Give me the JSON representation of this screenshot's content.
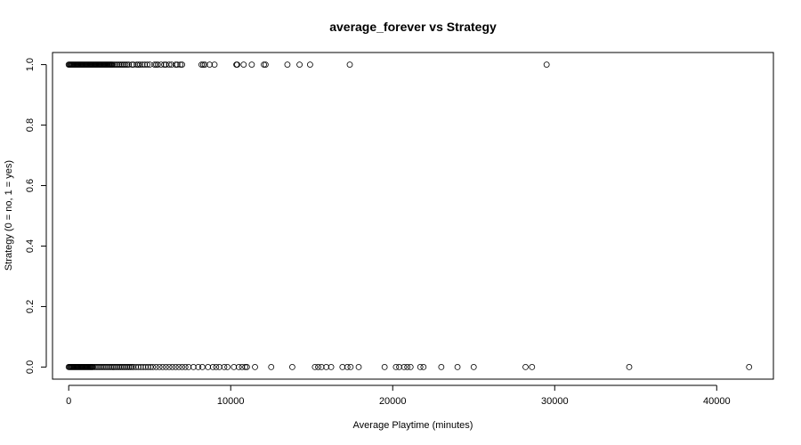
{
  "chart_data": {
    "type": "scatter",
    "title": "average_forever vs Strategy",
    "xlabel": "Average Playtime (minutes)",
    "ylabel": "Strategy (0 = no, 1 = yes)",
    "xlim": [
      -1000,
      43500
    ],
    "ylim": [
      -0.04,
      1.04
    ],
    "xticks": [
      0,
      10000,
      20000,
      30000,
      40000
    ],
    "xtick_labels": [
      "0",
      "10000",
      "20000",
      "30000",
      "40000"
    ],
    "yticks": [
      0.0,
      0.2,
      0.4,
      0.6,
      0.8,
      1.0
    ],
    "ytick_labels": [
      "0.0",
      "0.2",
      "0.4",
      "0.6",
      "0.8",
      "1.0"
    ],
    "grid": false,
    "series": [
      {
        "values_y": 1,
        "x": [
          0,
          50,
          100,
          150,
          200,
          250,
          300,
          350,
          400,
          450,
          500,
          550,
          600,
          650,
          700,
          750,
          800,
          850,
          900,
          950,
          1000,
          1050,
          1100,
          1150,
          1200,
          1250,
          1300,
          1350,
          1400,
          1450,
          1500,
          1550,
          1600,
          1650,
          1700,
          1750,
          1800,
          1850,
          1900,
          1950,
          2000,
          2050,
          2100,
          2150,
          2200,
          2250,
          2300,
          2350,
          2400,
          2450,
          2500,
          2550,
          2600,
          2650,
          2700,
          2800,
          2900,
          3000,
          3100,
          3200,
          3300,
          3400,
          3500,
          3600,
          3700,
          3900,
          4000,
          4200,
          4300,
          4400,
          4550,
          4700,
          4850,
          5000,
          5300,
          5400,
          5500,
          5700,
          5900,
          6000,
          6200,
          6350,
          6600,
          6700,
          6900,
          7000,
          8200,
          8300,
          8400,
          8700,
          9000,
          10350,
          10400,
          10800,
          11300,
          12050,
          12150,
          13500,
          14250,
          14900,
          17350,
          29500
        ]
      },
      {
        "values_y": 0,
        "x": [
          0,
          50,
          100,
          150,
          200,
          250,
          300,
          350,
          400,
          450,
          500,
          550,
          600,
          650,
          700,
          750,
          800,
          850,
          900,
          950,
          1000,
          1050,
          1100,
          1150,
          1200,
          1250,
          1300,
          1350,
          1400,
          1450,
          1500,
          1600,
          1700,
          1800,
          1900,
          2000,
          2100,
          2200,
          2300,
          2400,
          2500,
          2600,
          2700,
          2800,
          2900,
          3000,
          3100,
          3200,
          3300,
          3400,
          3500,
          3600,
          3700,
          3800,
          3900,
          4000,
          4150,
          4300,
          4450,
          4600,
          4750,
          4900,
          5050,
          5200,
          5400,
          5600,
          5800,
          6000,
          6200,
          6400,
          6600,
          6800,
          7000,
          7200,
          7400,
          7700,
          8000,
          8250,
          8600,
          8900,
          9100,
          9300,
          9600,
          9800,
          10200,
          10500,
          10700,
          10900,
          11000,
          11500,
          12500,
          13800,
          15200,
          15400,
          15600,
          15900,
          16200,
          16900,
          17200,
          17400,
          17900,
          19500,
          20200,
          20400,
          20700,
          20900,
          21100,
          21700,
          21900,
          23000,
          24000,
          25000,
          28200,
          28600,
          34600,
          42000
        ]
      }
    ]
  }
}
